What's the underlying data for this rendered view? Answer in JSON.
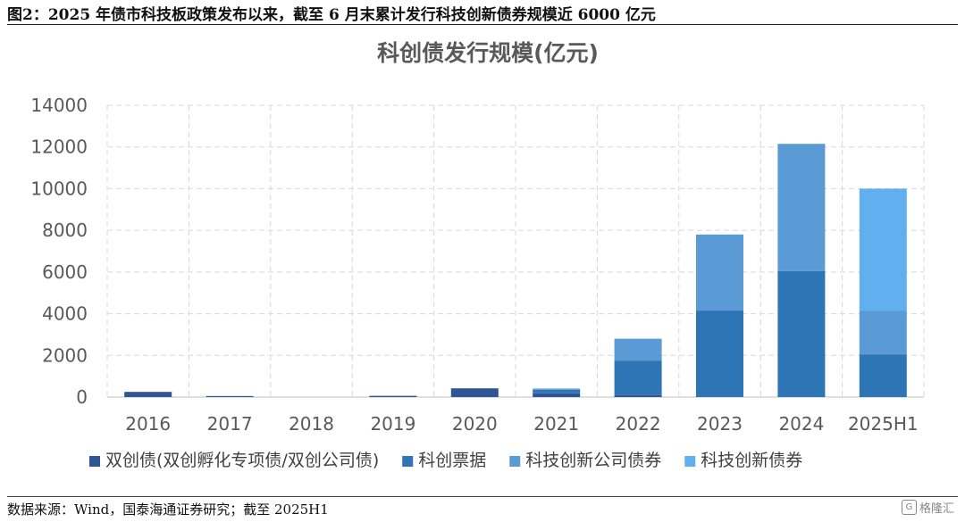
{
  "caption": "图2：2025 年债市科技板政策发布以来，截至 6 月末累计发行科技创新债券规模近 6000 亿元",
  "source": "数据来源：Wind，国泰海通证券研究；截至 2025H1",
  "watermark": "格隆汇",
  "chart_data": {
    "type": "bar",
    "stacked": true,
    "title": "科创债发行规模(亿元)",
    "xlabel": "",
    "ylabel": "",
    "categories": [
      "2016",
      "2017",
      "2018",
      "2019",
      "2020",
      "2021",
      "2022",
      "2023",
      "2024",
      "2025H1"
    ],
    "ylim": [
      0,
      14000
    ],
    "yticks": [
      0,
      2000,
      4000,
      6000,
      8000,
      10000,
      12000,
      14000
    ],
    "grid": true,
    "legend": "bottom",
    "series": [
      {
        "name": "双创债(双创孵化专项债/双创公司债)",
        "color": "#2F5597",
        "values": [
          250,
          50,
          0,
          60,
          420,
          180,
          100,
          0,
          0,
          0
        ]
      },
      {
        "name": "科创票据",
        "color": "#2E75B6",
        "values": [
          0,
          0,
          0,
          0,
          0,
          170,
          1650,
          4150,
          6050,
          2050
        ]
      },
      {
        "name": "科技创新公司债券",
        "color": "#5B9BD5",
        "values": [
          0,
          0,
          0,
          0,
          0,
          60,
          1050,
          3650,
          6100,
          2100
        ]
      },
      {
        "name": "科技创新债券",
        "color": "#62AFEF",
        "values": [
          0,
          0,
          0,
          0,
          0,
          0,
          0,
          0,
          0,
          5850
        ]
      }
    ]
  }
}
